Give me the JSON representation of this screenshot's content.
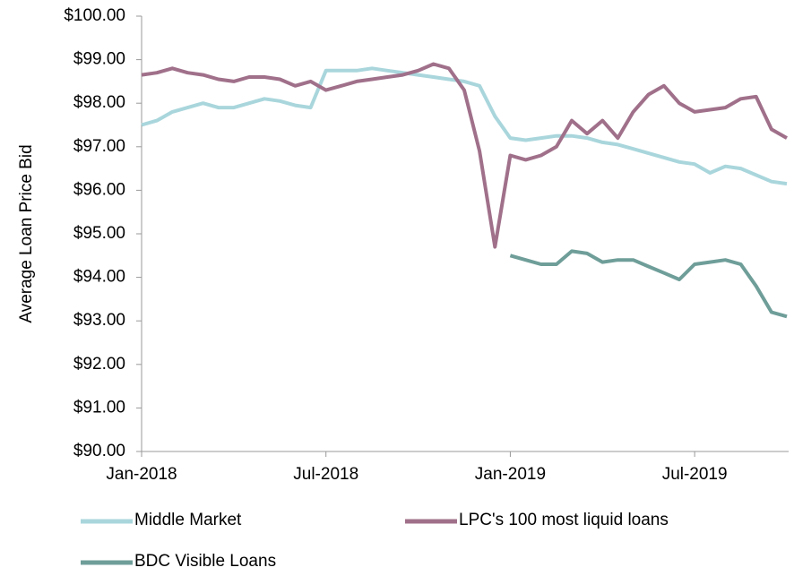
{
  "chart_data": {
    "type": "line",
    "y_label": "Average Loan Price Bid",
    "categories": [
      "Jan-2018",
      null,
      null,
      null,
      null,
      null,
      null,
      null,
      null,
      null,
      null,
      null,
      "Jul-2018",
      null,
      null,
      null,
      null,
      null,
      null,
      null,
      null,
      null,
      null,
      null,
      "Jan-2019",
      null,
      null,
      null,
      null,
      null,
      null,
      null,
      null,
      null,
      null,
      null,
      "Jul-2019",
      null,
      null,
      null,
      null,
      null,
      null
    ],
    "series": [
      {
        "name": "Middle Market",
        "color": "#a9d6dc",
        "values": [
          97.5,
          97.6,
          97.8,
          97.9,
          98.0,
          97.9,
          97.9,
          98.0,
          98.1,
          98.05,
          97.95,
          97.9,
          98.75,
          98.75,
          98.75,
          98.8,
          98.75,
          98.7,
          98.65,
          98.6,
          98.55,
          98.5,
          98.4,
          97.7,
          97.2,
          97.15,
          97.2,
          97.25,
          97.25,
          97.2,
          97.1,
          97.05,
          96.95,
          96.85,
          96.75,
          96.65,
          96.6,
          96.4,
          96.55,
          96.5,
          96.35,
          96.2,
          96.15
        ]
      },
      {
        "name": "LPC's 100 most liquid loans",
        "color": "#a0708a",
        "values": [
          98.65,
          98.7,
          98.8,
          98.7,
          98.65,
          98.55,
          98.5,
          98.6,
          98.6,
          98.55,
          98.4,
          98.5,
          98.3,
          98.4,
          98.5,
          98.55,
          98.6,
          98.65,
          98.75,
          98.9,
          98.8,
          98.3,
          96.9,
          94.7,
          96.8,
          96.7,
          96.8,
          97.0,
          97.6,
          97.3,
          97.6,
          97.2,
          97.8,
          98.2,
          98.4,
          98.0,
          97.8,
          97.85,
          97.9,
          98.1,
          98.15,
          97.4,
          97.2
        ]
      },
      {
        "name": "BDC Visible Loans",
        "color": "#6f9e99",
        "values": [
          null,
          null,
          null,
          null,
          null,
          null,
          null,
          null,
          null,
          null,
          null,
          null,
          null,
          null,
          null,
          null,
          null,
          null,
          null,
          null,
          null,
          null,
          null,
          null,
          94.5,
          94.4,
          94.3,
          94.3,
          94.6,
          94.55,
          94.35,
          94.4,
          94.4,
          94.25,
          94.1,
          93.95,
          94.3,
          94.35,
          94.4,
          94.3,
          93.8,
          93.2,
          93.1
        ]
      }
    ],
    "ylim": [
      90,
      100
    ],
    "yticks": [
      {
        "value": 90,
        "label": "$90.00"
      },
      {
        "value": 91,
        "label": "$91.00"
      },
      {
        "value": 92,
        "label": "$92.00"
      },
      {
        "value": 93,
        "label": "$93.00"
      },
      {
        "value": 94,
        "label": "$94.00"
      },
      {
        "value": 95,
        "label": "$95.00"
      },
      {
        "value": 96,
        "label": "$96.00"
      },
      {
        "value": 97,
        "label": "$97.00"
      },
      {
        "value": 98,
        "label": "$98.00"
      },
      {
        "value": 99,
        "label": "$99.00"
      },
      {
        "value": 100,
        "label": "$100.00"
      }
    ],
    "grid": false
  }
}
